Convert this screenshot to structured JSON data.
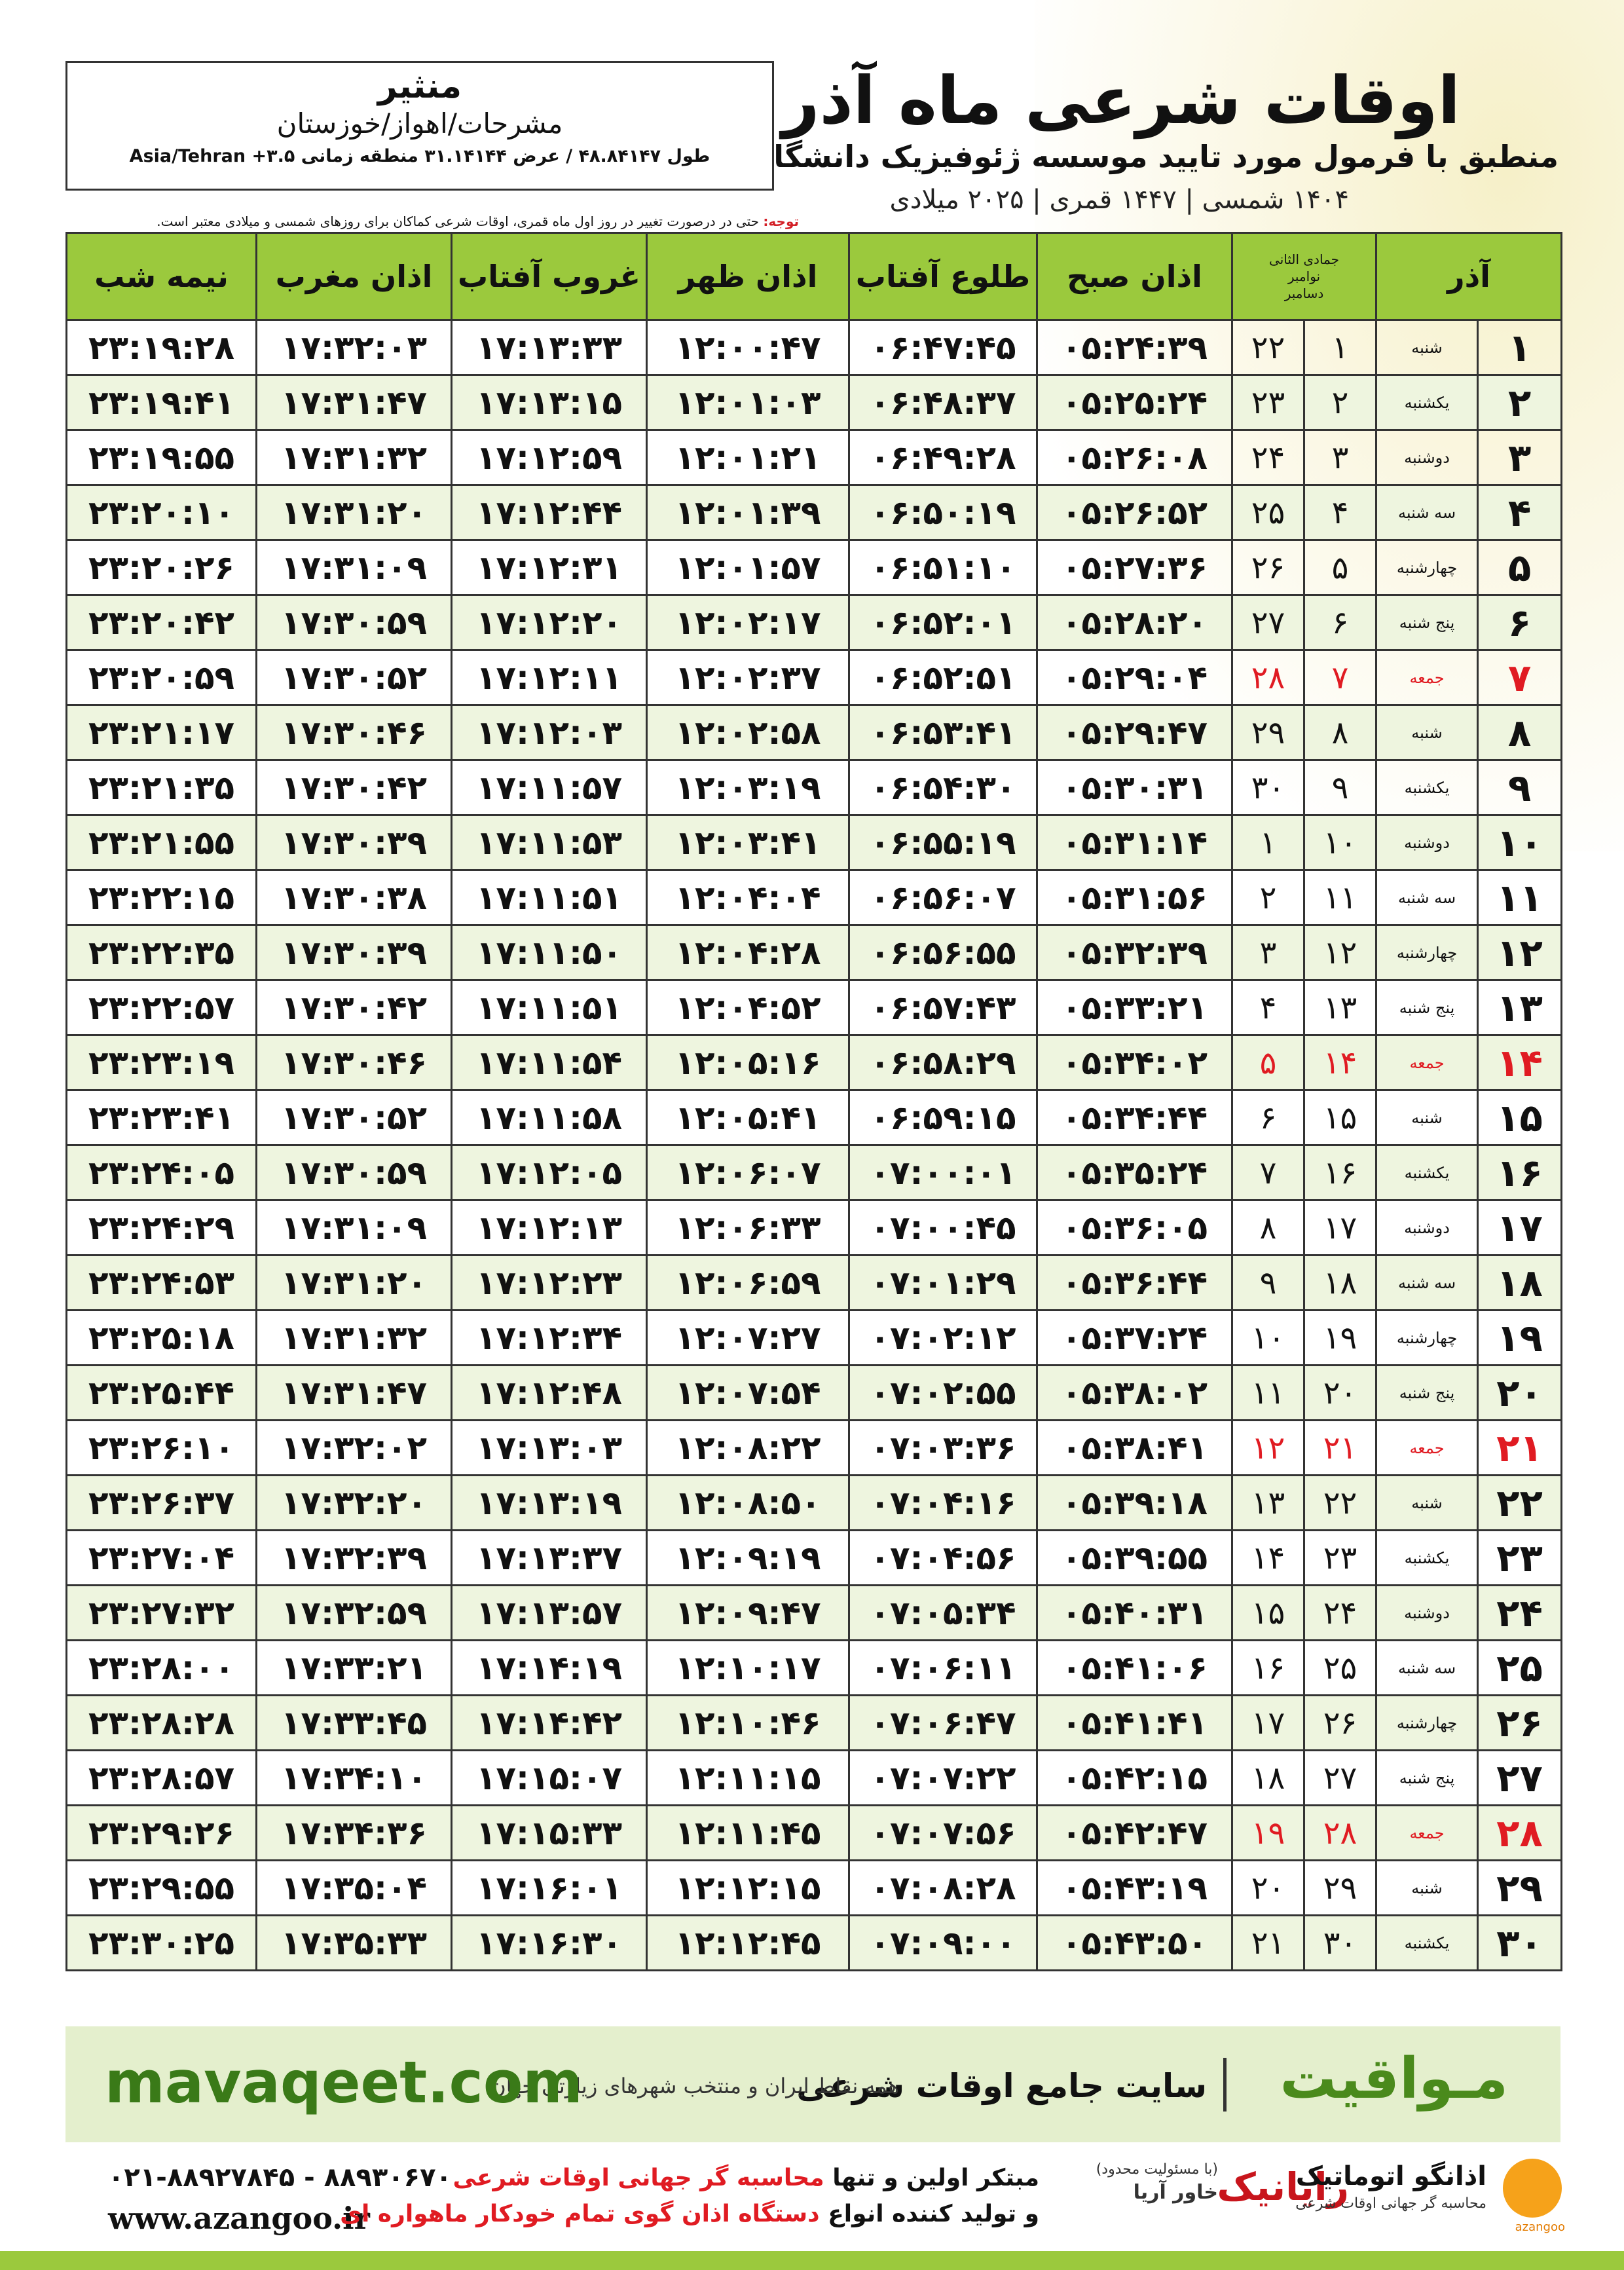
{
  "header": {
    "title": "اوقات شرعی ماه آذر",
    "subtitle": "منطبق با فرمول مورد تایید موسسه ژئوفیزیک دانشگاه تهران",
    "dates": "۱۴۰۴ شمسی | ۱۴۴۷ قمری | ۲۰۲۵ میلادی"
  },
  "location": {
    "name": "منثیر",
    "region": "مشرحات/اهواز/خوزستان",
    "coords": "طول ۴۸.۸۴۱۴۷ / عرض ۳۱.۱۴۱۴۴ منطقه زمانی ۳.۵+ Asia/Tehran"
  },
  "note": {
    "label": "توجه:",
    "text": "حتی در درصورت تغییر در روز اول ماه قمری، اوقات شرعی کماکان برای روزهای شمسی و میلادی معتبر است."
  },
  "table": {
    "columns": {
      "month": "آذر",
      "lunar": "جمادی الثانی",
      "gregorian": [
        "نوامبر",
        "دسامبر"
      ],
      "times": [
        "اذان صبح",
        "طلوع آفتاب",
        "اذان ظهر",
        "غروب آفتاب",
        "اذان مغرب",
        "نیمه شب"
      ]
    },
    "rows": [
      [
        "۱",
        "شنبه",
        "۱",
        "۲۲",
        "۰۵:۲۴:۳۹",
        "۰۶:۴۷:۴۵",
        "۱۲:۰۰:۴۷",
        "۱۷:۱۳:۳۳",
        "۱۷:۳۲:۰۳",
        "۲۳:۱۹:۲۸"
      ],
      [
        "۲",
        "یکشنبه",
        "۲",
        "۲۳",
        "۰۵:۲۵:۲۴",
        "۰۶:۴۸:۳۷",
        "۱۲:۰۱:۰۳",
        "۱۷:۱۳:۱۵",
        "۱۷:۳۱:۴۷",
        "۲۳:۱۹:۴۱"
      ],
      [
        "۳",
        "دوشنبه",
        "۳",
        "۲۴",
        "۰۵:۲۶:۰۸",
        "۰۶:۴۹:۲۸",
        "۱۲:۰۱:۲۱",
        "۱۷:۱۲:۵۹",
        "۱۷:۳۱:۳۲",
        "۲۳:۱۹:۵۵"
      ],
      [
        "۴",
        "سه شنبه",
        "۴",
        "۲۵",
        "۰۵:۲۶:۵۲",
        "۰۶:۵۰:۱۹",
        "۱۲:۰۱:۳۹",
        "۱۷:۱۲:۴۴",
        "۱۷:۳۱:۲۰",
        "۲۳:۲۰:۱۰"
      ],
      [
        "۵",
        "چهارشنبه",
        "۵",
        "۲۶",
        "۰۵:۲۷:۳۶",
        "۰۶:۵۱:۱۰",
        "۱۲:۰۱:۵۷",
        "۱۷:۱۲:۳۱",
        "۱۷:۳۱:۰۹",
        "۲۳:۲۰:۲۶"
      ],
      [
        "۶",
        "پنج شنبه",
        "۶",
        "۲۷",
        "۰۵:۲۸:۲۰",
        "۰۶:۵۲:۰۱",
        "۱۲:۰۲:۱۷",
        "۱۷:۱۲:۲۰",
        "۱۷:۳۰:۵۹",
        "۲۳:۲۰:۴۲"
      ],
      [
        "۷",
        "جمعه",
        "۷",
        "۲۸",
        "۰۵:۲۹:۰۴",
        "۰۶:۵۲:۵۱",
        "۱۲:۰۲:۳۷",
        "۱۷:۱۲:۱۱",
        "۱۷:۳۰:۵۲",
        "۲۳:۲۰:۵۹"
      ],
      [
        "۸",
        "شنبه",
        "۸",
        "۲۹",
        "۰۵:۲۹:۴۷",
        "۰۶:۵۳:۴۱",
        "۱۲:۰۲:۵۸",
        "۱۷:۱۲:۰۳",
        "۱۷:۳۰:۴۶",
        "۲۳:۲۱:۱۷"
      ],
      [
        "۹",
        "یکشنبه",
        "۹",
        "۳۰",
        "۰۵:۳۰:۳۱",
        "۰۶:۵۴:۳۰",
        "۱۲:۰۳:۱۹",
        "۱۷:۱۱:۵۷",
        "۱۷:۳۰:۴۲",
        "۲۳:۲۱:۳۵"
      ],
      [
        "۱۰",
        "دوشنبه",
        "۱۰",
        "۱",
        "۰۵:۳۱:۱۴",
        "۰۶:۵۵:۱۹",
        "۱۲:۰۳:۴۱",
        "۱۷:۱۱:۵۳",
        "۱۷:۳۰:۳۹",
        "۲۳:۲۱:۵۵"
      ],
      [
        "۱۱",
        "سه شنبه",
        "۱۱",
        "۲",
        "۰۵:۳۱:۵۶",
        "۰۶:۵۶:۰۷",
        "۱۲:۰۴:۰۴",
        "۱۷:۱۱:۵۱",
        "۱۷:۳۰:۳۸",
        "۲۳:۲۲:۱۵"
      ],
      [
        "۱۲",
        "چهارشنبه",
        "۱۲",
        "۳",
        "۰۵:۳۲:۳۹",
        "۰۶:۵۶:۵۵",
        "۱۲:۰۴:۲۸",
        "۱۷:۱۱:۵۰",
        "۱۷:۳۰:۳۹",
        "۲۳:۲۲:۳۵"
      ],
      [
        "۱۳",
        "پنج شنبه",
        "۱۳",
        "۴",
        "۰۵:۳۳:۲۱",
        "۰۶:۵۷:۴۳",
        "۱۲:۰۴:۵۲",
        "۱۷:۱۱:۵۱",
        "۱۷:۳۰:۴۲",
        "۲۳:۲۲:۵۷"
      ],
      [
        "۱۴",
        "جمعه",
        "۱۴",
        "۵",
        "۰۵:۳۴:۰۲",
        "۰۶:۵۸:۲۹",
        "۱۲:۰۵:۱۶",
        "۱۷:۱۱:۵۴",
        "۱۷:۳۰:۴۶",
        "۲۳:۲۳:۱۹"
      ],
      [
        "۱۵",
        "شنبه",
        "۱۵",
        "۶",
        "۰۵:۳۴:۴۴",
        "۰۶:۵۹:۱۵",
        "۱۲:۰۵:۴۱",
        "۱۷:۱۱:۵۸",
        "۱۷:۳۰:۵۲",
        "۲۳:۲۳:۴۱"
      ],
      [
        "۱۶",
        "یکشنبه",
        "۱۶",
        "۷",
        "۰۵:۳۵:۲۴",
        "۰۷:۰۰:۰۱",
        "۱۲:۰۶:۰۷",
        "۱۷:۱۲:۰۵",
        "۱۷:۳۰:۵۹",
        "۲۳:۲۴:۰۵"
      ],
      [
        "۱۷",
        "دوشنبه",
        "۱۷",
        "۸",
        "۰۵:۳۶:۰۵",
        "۰۷:۰۰:۴۵",
        "۱۲:۰۶:۳۳",
        "۱۷:۱۲:۱۳",
        "۱۷:۳۱:۰۹",
        "۲۳:۲۴:۲۹"
      ],
      [
        "۱۸",
        "سه شنبه",
        "۱۸",
        "۹",
        "۰۵:۳۶:۴۴",
        "۰۷:۰۱:۲۹",
        "۱۲:۰۶:۵۹",
        "۱۷:۱۲:۲۳",
        "۱۷:۳۱:۲۰",
        "۲۳:۲۴:۵۳"
      ],
      [
        "۱۹",
        "چهارشنبه",
        "۱۹",
        "۱۰",
        "۰۵:۳۷:۲۴",
        "۰۷:۰۲:۱۲",
        "۱۲:۰۷:۲۷",
        "۱۷:۱۲:۳۴",
        "۱۷:۳۱:۳۲",
        "۲۳:۲۵:۱۸"
      ],
      [
        "۲۰",
        "پنج شنبه",
        "۲۰",
        "۱۱",
        "۰۵:۳۸:۰۲",
        "۰۷:۰۲:۵۵",
        "۱۲:۰۷:۵۴",
        "۱۷:۱۲:۴۸",
        "۱۷:۳۱:۴۷",
        "۲۳:۲۵:۴۴"
      ],
      [
        "۲۱",
        "جمعه",
        "۲۱",
        "۱۲",
        "۰۵:۳۸:۴۱",
        "۰۷:۰۳:۳۶",
        "۱۲:۰۸:۲۲",
        "۱۷:۱۳:۰۳",
        "۱۷:۳۲:۰۲",
        "۲۳:۲۶:۱۰"
      ],
      [
        "۲۲",
        "شنبه",
        "۲۲",
        "۱۳",
        "۰۵:۳۹:۱۸",
        "۰۷:۰۴:۱۶",
        "۱۲:۰۸:۵۰",
        "۱۷:۱۳:۱۹",
        "۱۷:۳۲:۲۰",
        "۲۳:۲۶:۳۷"
      ],
      [
        "۲۳",
        "یکشنبه",
        "۲۳",
        "۱۴",
        "۰۵:۳۹:۵۵",
        "۰۷:۰۴:۵۶",
        "۱۲:۰۹:۱۹",
        "۱۷:۱۳:۳۷",
        "۱۷:۳۲:۳۹",
        "۲۳:۲۷:۰۴"
      ],
      [
        "۲۴",
        "دوشنبه",
        "۲۴",
        "۱۵",
        "۰۵:۴۰:۳۱",
        "۰۷:۰۵:۳۴",
        "۱۲:۰۹:۴۷",
        "۱۷:۱۳:۵۷",
        "۱۷:۳۲:۵۹",
        "۲۳:۲۷:۳۲"
      ],
      [
        "۲۵",
        "سه شنبه",
        "۲۵",
        "۱۶",
        "۰۵:۴۱:۰۶",
        "۰۷:۰۶:۱۱",
        "۱۲:۱۰:۱۷",
        "۱۷:۱۴:۱۹",
        "۱۷:۳۳:۲۱",
        "۲۳:۲۸:۰۰"
      ],
      [
        "۲۶",
        "چهارشنبه",
        "۲۶",
        "۱۷",
        "۰۵:۴۱:۴۱",
        "۰۷:۰۶:۴۷",
        "۱۲:۱۰:۴۶",
        "۱۷:۱۴:۴۲",
        "۱۷:۳۳:۴۵",
        "۲۳:۲۸:۲۸"
      ],
      [
        "۲۷",
        "پنج شنبه",
        "۲۷",
        "۱۸",
        "۰۵:۴۲:۱۵",
        "۰۷:۰۷:۲۲",
        "۱۲:۱۱:۱۵",
        "۱۷:۱۵:۰۷",
        "۱۷:۳۴:۱۰",
        "۲۳:۲۸:۵۷"
      ],
      [
        "۲۸",
        "جمعه",
        "۲۸",
        "۱۹",
        "۰۵:۴۲:۴۷",
        "۰۷:۰۷:۵۶",
        "۱۲:۱۱:۴۵",
        "۱۷:۱۵:۳۳",
        "۱۷:۳۴:۳۶",
        "۲۳:۲۹:۲۶"
      ],
      [
        "۲۹",
        "شنبه",
        "۲۹",
        "۲۰",
        "۰۵:۴۳:۱۹",
        "۰۷:۰۸:۲۸",
        "۱۲:۱۲:۱۵",
        "۱۷:۱۶:۰۱",
        "۱۷:۳۵:۰۴",
        "۲۳:۲۹:۵۵"
      ],
      [
        "۳۰",
        "یکشنبه",
        "۳۰",
        "۲۱",
        "۰۵:۴۳:۵۰",
        "۰۷:۰۹:۰۰",
        "۱۲:۱۲:۴۵",
        "۱۷:۱۶:۳۰",
        "۱۷:۳۵:۳۳",
        "۲۳:۳۰:۲۵"
      ]
    ],
    "row_colors": [
      "#111",
      "#111",
      "#111",
      "#111",
      "#111",
      "#111",
      "#e01b22",
      "#111",
      "#111",
      "#111",
      "#111",
      "#111",
      "#111",
      "#e01b22",
      "#111",
      "#111",
      "#111",
      "#111",
      "#111",
      "#111",
      "#e01b22",
      "#111",
      "#111",
      "#111",
      "#111",
      "#111",
      "#111",
      "#e01b22",
      "#111",
      "#111"
    ]
  },
  "banner": {
    "brand": "مـواقیت",
    "site": "سایت جامع اوقات شرعی",
    "subtitle": "همه نقاط ایران و منتخب شهرهای زیارتی جهان",
    "url": "mavaqeet.com"
  },
  "footer": {
    "phone": "۰۲۱-۸۸۹۲۷۸۴۵ - ۸۸۹۳۰۶۷۰",
    "website": "www.azangoo.ir",
    "line1": "مبتکر اولین و تنها",
    "line1_highlight": "محاسبه گر جهانی اوقات شرعی",
    "line2": "و تولید کننده انواع",
    "line2_highlight": "دستگاه اذان گوی تمام خودکار ماهواره ای",
    "logo1": "رایانیک",
    "logo1_note": "(با مسئولیت محدود)",
    "logo1_sub": "خاور آریا",
    "logo2": "اذانگو اتوماتیک",
    "logo2_sub": "محاسبه گر جهانی اوقات شرعی",
    "logo2_latin": "azangoo"
  }
}
